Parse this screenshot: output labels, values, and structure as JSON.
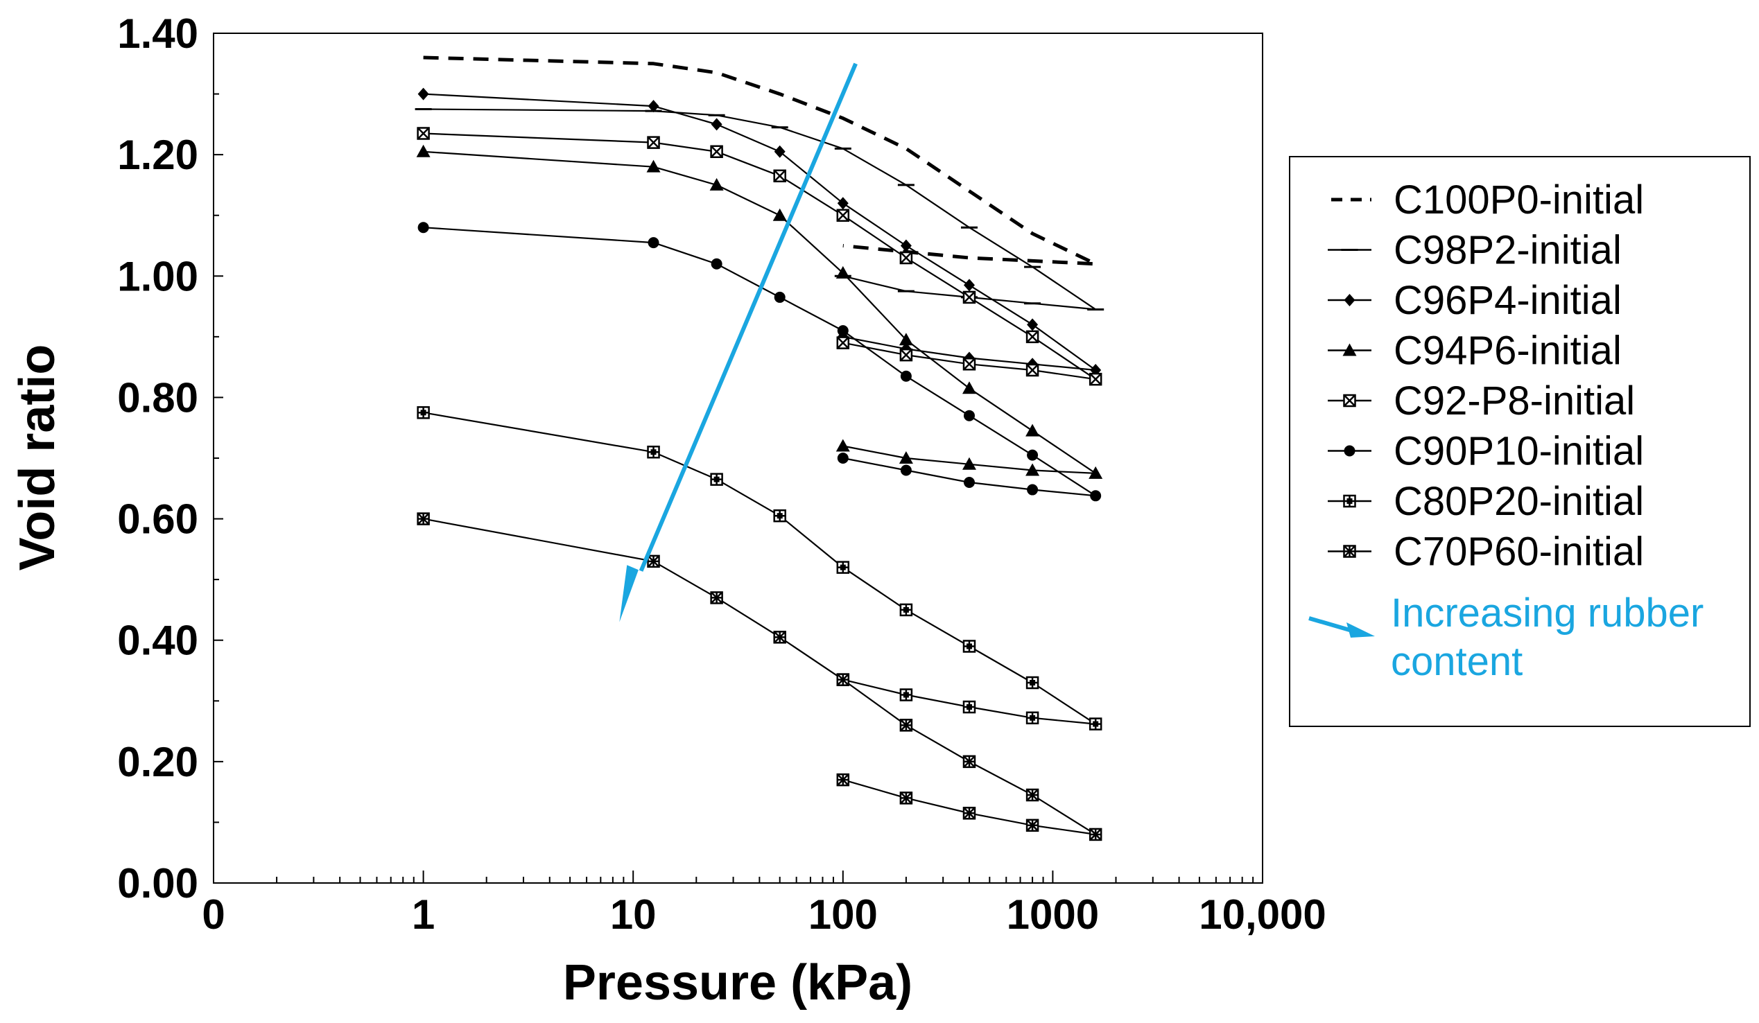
{
  "chart_data": {
    "type": "line",
    "title": "",
    "xlabel": "Pressure (kPa)",
    "ylabel": "Void ratio",
    "xscale": "log",
    "xlim": [
      0.1,
      10000
    ],
    "ylim": [
      0,
      1.4
    ],
    "xtick_labels": [
      "0",
      "1",
      "10",
      "100",
      "1000",
      "10,000"
    ],
    "ytick_labels": [
      "0.00",
      "0.20",
      "0.40",
      "0.60",
      "0.80",
      "1.00",
      "1.20",
      "1.40"
    ],
    "legend_position": "right",
    "series": [
      {
        "name": "C100P0-initial",
        "marker": "none",
        "dash": true,
        "x": [
          1,
          12.5,
          25,
          50,
          100,
          200,
          400,
          800,
          1600,
          800,
          400,
          200,
          100
        ],
        "y": [
          1.36,
          1.35,
          1.335,
          1.3,
          1.26,
          1.21,
          1.14,
          1.07,
          1.02,
          1.025,
          1.03,
          1.04,
          1.05
        ]
      },
      {
        "name": "C98P2-initial",
        "marker": "dash",
        "x": [
          1,
          12.5,
          25,
          50,
          100,
          200,
          400,
          800,
          1600,
          800,
          400,
          200,
          100
        ],
        "y": [
          1.275,
          1.272,
          1.265,
          1.245,
          1.21,
          1.15,
          1.08,
          1.015,
          0.945,
          0.955,
          0.965,
          0.975,
          1.0
        ]
      },
      {
        "name": "C96P4-initial",
        "marker": "diamond",
        "x": [
          1,
          12.5,
          25,
          50,
          100,
          200,
          400,
          800,
          1600,
          800,
          400,
          200,
          100
        ],
        "y": [
          1.3,
          1.28,
          1.25,
          1.205,
          1.12,
          1.05,
          0.985,
          0.92,
          0.845,
          0.855,
          0.865,
          0.88,
          0.9
        ]
      },
      {
        "name": "C94P6-initial",
        "marker": "triangle",
        "x": [
          1,
          12.5,
          25,
          50,
          100,
          200,
          400,
          800,
          1600,
          800,
          400,
          200,
          100
        ],
        "y": [
          1.205,
          1.18,
          1.15,
          1.1,
          1.005,
          0.895,
          0.815,
          0.745,
          0.675,
          0.68,
          0.69,
          0.7,
          0.72
        ]
      },
      {
        "name": "C92-P8-initial",
        "marker": "square-x",
        "x": [
          1,
          12.5,
          25,
          50,
          100,
          200,
          400,
          800,
          1600,
          800,
          400,
          200,
          100
        ],
        "y": [
          1.235,
          1.22,
          1.205,
          1.165,
          1.1,
          1.03,
          0.965,
          0.9,
          0.83,
          0.845,
          0.855,
          0.87,
          0.89
        ]
      },
      {
        "name": "C90P10-initial",
        "marker": "circle",
        "x": [
          1,
          12.5,
          25,
          50,
          100,
          200,
          400,
          800,
          1600,
          800,
          400,
          200,
          100
        ],
        "y": [
          1.08,
          1.055,
          1.02,
          0.965,
          0.91,
          0.835,
          0.77,
          0.705,
          0.638,
          0.648,
          0.66,
          0.68,
          0.7
        ]
      },
      {
        "name": "C80P20-initial",
        "marker": "square-plus",
        "x": [
          1,
          12.5,
          25,
          50,
          100,
          200,
          400,
          800,
          1600,
          800,
          400,
          200,
          100
        ],
        "y": [
          0.775,
          0.71,
          0.665,
          0.605,
          0.52,
          0.45,
          0.39,
          0.33,
          0.262,
          0.272,
          0.29,
          0.31,
          0.335
        ]
      },
      {
        "name": "C70P60-initial",
        "marker": "square-star",
        "x": [
          1,
          12.5,
          25,
          50,
          100,
          200,
          400,
          800,
          1600,
          800,
          400,
          200,
          100
        ],
        "y": [
          0.6,
          0.53,
          0.47,
          0.405,
          0.335,
          0.26,
          0.2,
          0.145,
          0.08,
          0.095,
          0.115,
          0.14,
          0.17
        ]
      }
    ],
    "annotation": {
      "label": "Increasing rubber content",
      "label_lines": [
        "Increasing rubber",
        "content"
      ],
      "color": "#1AA6E0",
      "arrow_from": {
        "x": 115,
        "y": 1.35
      },
      "arrow_to": {
        "x": 8.6,
        "y": 0.43
      }
    }
  }
}
